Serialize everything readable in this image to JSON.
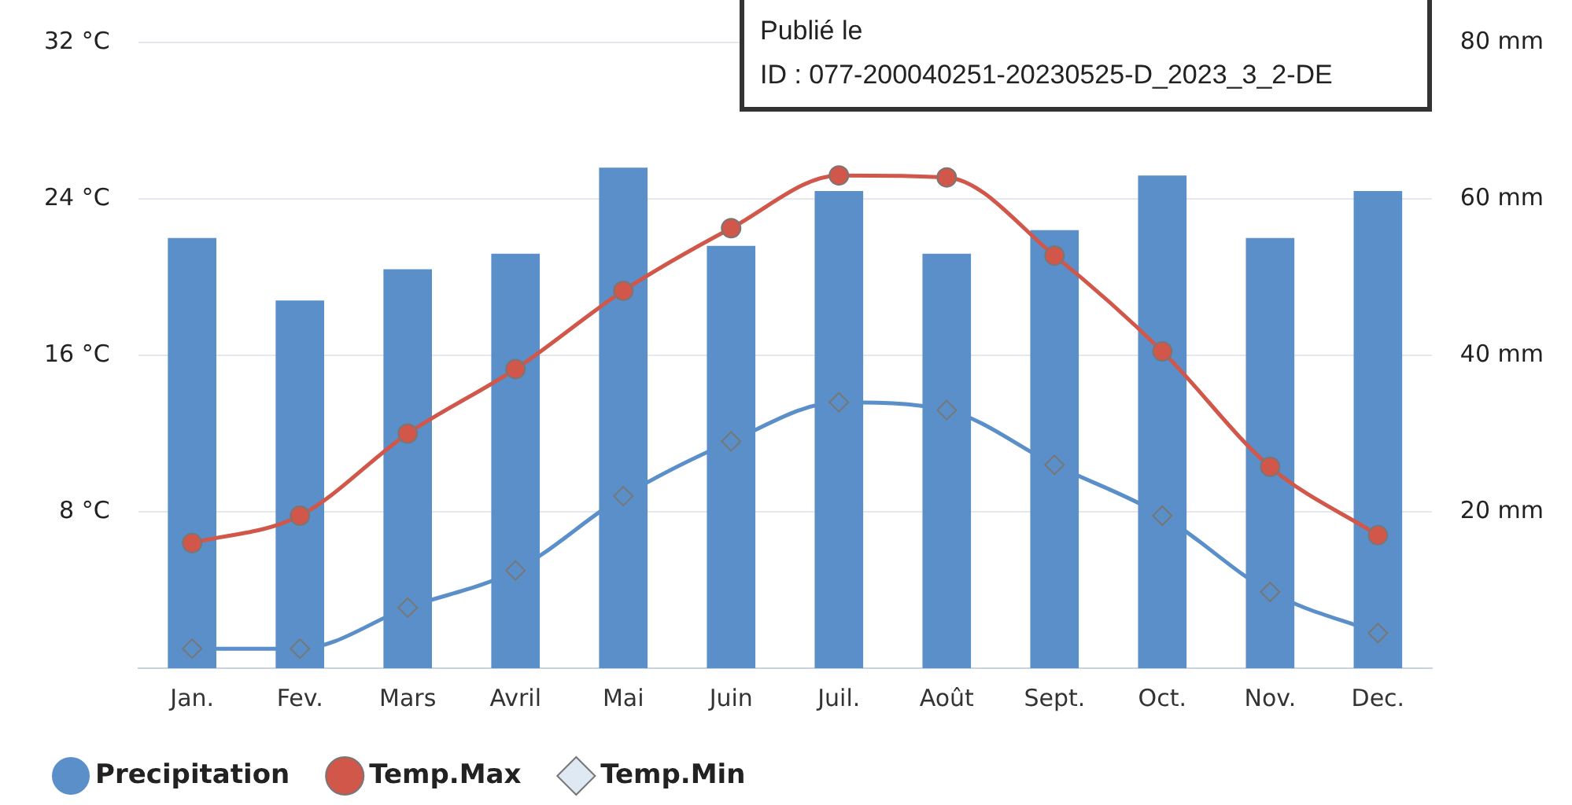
{
  "chart_data": {
    "type": "bar",
    "categories": [
      "Jan.",
      "Fev.",
      "Mars",
      "Avril",
      "Mai",
      "Juin",
      "Juil.",
      "Août",
      "Sept.",
      "Oct.",
      "Nov.",
      "Dec."
    ],
    "series": [
      {
        "name": "Precipitation",
        "axis": "y2",
        "color": "#5b8fc9",
        "values": [
          55,
          47,
          51,
          53,
          64,
          54,
          61,
          53,
          56,
          63,
          55,
          61
        ]
      },
      {
        "name": "Temp.Max",
        "type": "line",
        "marker": "circle",
        "color": "#d0574a",
        "values": [
          6.4,
          7.8,
          12.0,
          15.3,
          19.3,
          22.5,
          25.2,
          25.1,
          21.1,
          16.2,
          10.3,
          6.8
        ]
      },
      {
        "name": "Temp.Min",
        "type": "line",
        "marker": "diamond",
        "color": "#5b8fc9",
        "values": [
          1.0,
          1.0,
          3.1,
          5.0,
          8.8,
          11.6,
          13.6,
          13.2,
          10.4,
          7.8,
          3.9,
          1.8
        ]
      }
    ],
    "ylim": [
      0,
      32
    ],
    "yticks": [
      {
        "value": 8,
        "label": "8 °C"
      },
      {
        "value": 16,
        "label": "16 °C"
      },
      {
        "value": 24,
        "label": "24 °C"
      },
      {
        "value": 32,
        "label": "32 °C"
      }
    ],
    "y2lim": [
      0,
      80
    ],
    "y2ticks": [
      {
        "value": 20,
        "label": "20 mm"
      },
      {
        "value": 40,
        "label": "40 mm"
      },
      {
        "value": 60,
        "label": "60 mm"
      },
      {
        "value": 80,
        "label": "80 mm"
      }
    ],
    "grid": "y",
    "legend": "bottom left",
    "annotations": [
      "Publié le",
      "ID : 077-200040251-20230525-D_2023_3_2-DE"
    ]
  }
}
